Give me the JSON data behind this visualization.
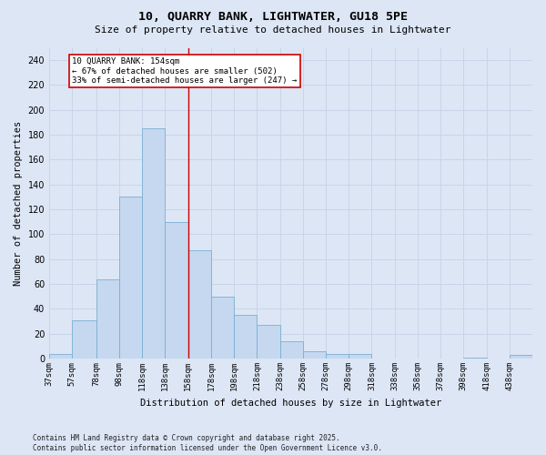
{
  "title_line1": "10, QUARRY BANK, LIGHTWATER, GU18 5PE",
  "title_line2": "Size of property relative to detached houses in Lightwater",
  "xlabel": "Distribution of detached houses by size in Lightwater",
  "ylabel": "Number of detached properties",
  "annotation_line1": "10 QUARRY BANK: 154sqm",
  "annotation_line2": "← 67% of detached houses are smaller (502)",
  "annotation_line3": "33% of semi-detached houses are larger (247) →",
  "footnote1": "Contains HM Land Registry data © Crown copyright and database right 2025.",
  "footnote2": "Contains public sector information licensed under the Open Government Licence v3.0.",
  "bin_edges": [
    37,
    57,
    78,
    98,
    118,
    138,
    158,
    178,
    198,
    218,
    238,
    258,
    278,
    298,
    318,
    338,
    358,
    378,
    398,
    418,
    438,
    458
  ],
  "bin_labels": [
    "37sqm",
    "57sqm",
    "78sqm",
    "98sqm",
    "118sqm",
    "138sqm",
    "158sqm",
    "178sqm",
    "198sqm",
    "218sqm",
    "238sqm",
    "258sqm",
    "278sqm",
    "298sqm",
    "318sqm",
    "338sqm",
    "358sqm",
    "378sqm",
    "398sqm",
    "418sqm",
    "438sqm"
  ],
  "values": [
    4,
    31,
    64,
    130,
    185,
    110,
    87,
    50,
    35,
    27,
    14,
    6,
    4,
    4,
    0,
    0,
    0,
    0,
    1,
    0,
    3
  ],
  "vline_x": 158,
  "bar_facecolor": "#c5d8ef",
  "bar_edgecolor": "#7aafd4",
  "vline_color": "#cc0000",
  "annotation_edgecolor": "#cc0000",
  "annotation_facecolor": "#ffffff",
  "grid_color": "#c8d4e8",
  "bg_color": "#dde6f5",
  "ylim": [
    0,
    250
  ],
  "yticks": [
    0,
    20,
    40,
    60,
    80,
    100,
    120,
    140,
    160,
    180,
    200,
    220,
    240
  ],
  "title_fontsize": 9.5,
  "subtitle_fontsize": 8,
  "tick_fontsize": 6.5,
  "ylabel_fontsize": 7.5,
  "xlabel_fontsize": 7.5,
  "footnote_fontsize": 5.5,
  "annot_fontsize": 6.5
}
